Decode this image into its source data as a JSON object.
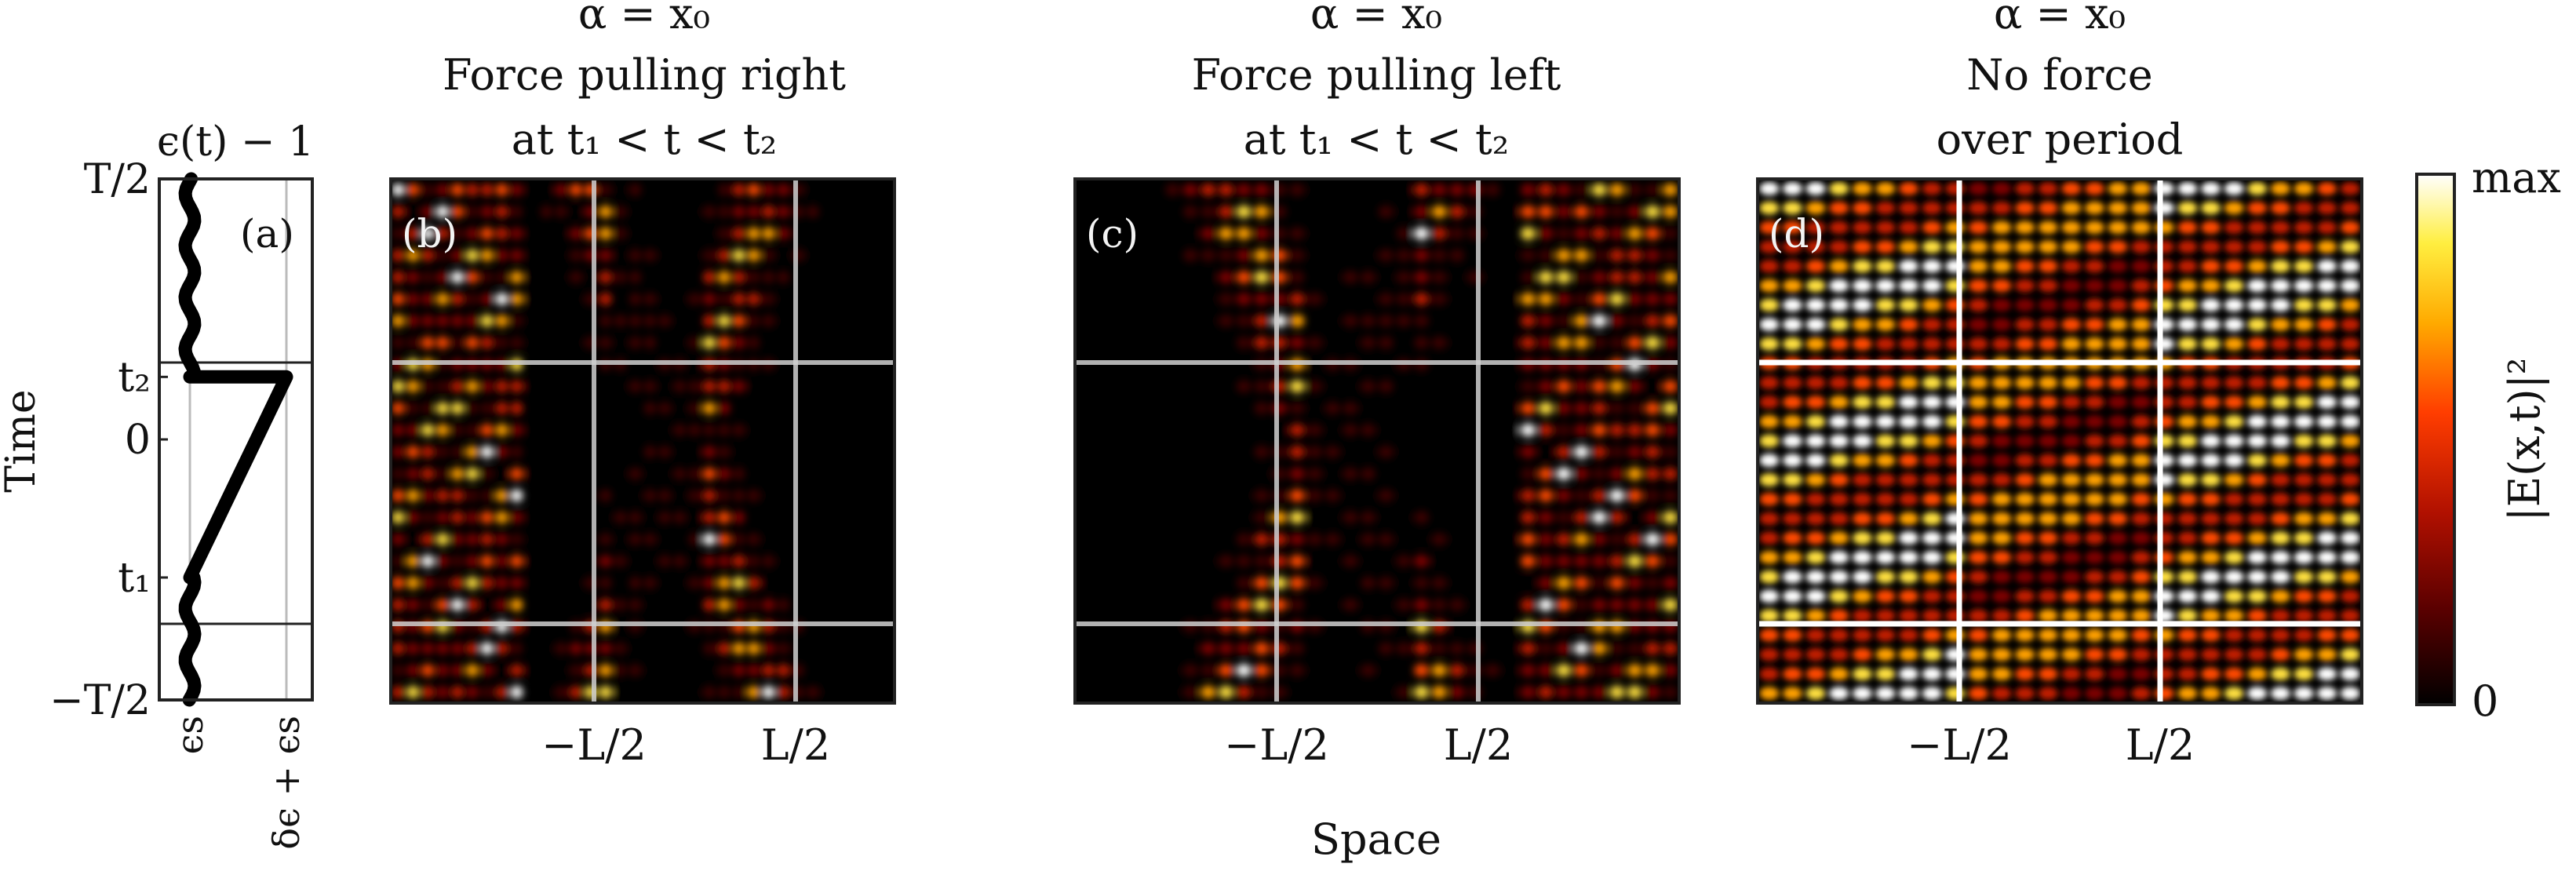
{
  "figure": {
    "shared_xlabel": "Space",
    "colorbar": {
      "label": "|E(x,t)|²",
      "max_label": "max",
      "min_label": "0"
    }
  },
  "chart_data": [
    {
      "type": "line",
      "panel": "(a)",
      "title": "ϵ(t) − 1",
      "ylabel": "Time",
      "yticks": [
        "−T/2",
        "t₁",
        "0",
        "t₂",
        "T/2"
      ],
      "xticks": [
        "ϵs",
        "δϵ + ϵs"
      ],
      "y_tick_values": [
        -1.0,
        -0.53,
        0.0,
        0.24,
        1.0
      ],
      "series": [
        {
          "points": [
            [
              0.0,
              -1.0
            ],
            [
              0.0,
              -0.53
            ],
            [
              1.0,
              0.24
            ],
            [
              0.0,
              0.24
            ],
            [
              0.0,
              1.0
            ]
          ]
        }
      ]
    },
    {
      "type": "heatmap",
      "panel": "(b)",
      "title": [
        "α = x₀",
        "Force pulling right",
        "at t₁ < t < t₂"
      ],
      "xticks": [
        "−L/2",
        "L/2"
      ],
      "guide_lines": {
        "x": [
          "−L/2",
          "L/2"
        ],
        "y": [
          "t₁",
          "t₂"
        ]
      },
      "pattern": "pulling-right"
    },
    {
      "type": "heatmap",
      "panel": "(c)",
      "title": [
        "α = x₀",
        "Force pulling left",
        "at t₁ < t < t₂"
      ],
      "xticks": [
        "−L/2",
        "L/2"
      ],
      "guide_lines": {
        "x": [
          "−L/2",
          "L/2"
        ],
        "y": [
          "t₁",
          "t₂"
        ]
      },
      "pattern": "pulling-left"
    },
    {
      "type": "heatmap",
      "panel": "(d)",
      "title": [
        "α = x₀",
        "No force",
        "over period"
      ],
      "xticks": [
        "−L/2",
        "L/2"
      ],
      "guide_lines": {
        "x": [
          "−L/2",
          "L/2"
        ],
        "y": [
          "t₁",
          "t₂"
        ]
      },
      "pattern": "no-force"
    }
  ],
  "colors": {
    "axis": "#222222",
    "guide_line": "#d0d0d0",
    "guide_line_d": "#ffffff",
    "curve": "#000000",
    "colormap": [
      "#000000",
      "#5a0000",
      "#b01000",
      "#ff3d00",
      "#ffaa00",
      "#ffee40",
      "#ffffff"
    ]
  }
}
